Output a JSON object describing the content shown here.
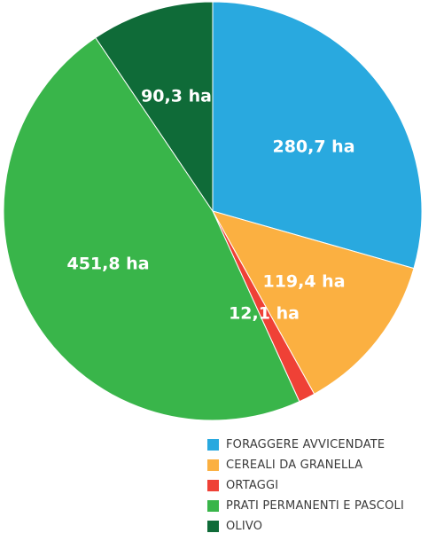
{
  "chart_data": {
    "type": "pie",
    "unit": "ha",
    "slices": [
      {
        "category": "FORAGGERE AVVICENDATE",
        "value": 280.7,
        "label": "280,7 ha",
        "color": "#29a9df"
      },
      {
        "category": "CEREALI DA GRANELLA",
        "value": 119.4,
        "label": "119,4 ha",
        "color": "#fbb041"
      },
      {
        "category": "ORTAGGI",
        "value": 12.1,
        "label": "12,1 ha",
        "color": "#ef4136"
      },
      {
        "category": "PRATI PERMANENTI E PASCOLI",
        "value": 451.8,
        "label": "451,8 ha",
        "color": "#39b54a"
      },
      {
        "category": "OLIVO",
        "value": 90.3,
        "label": "90,3 ha",
        "color": "#0f6b38"
      }
    ],
    "legend_position": "bottom-right"
  }
}
